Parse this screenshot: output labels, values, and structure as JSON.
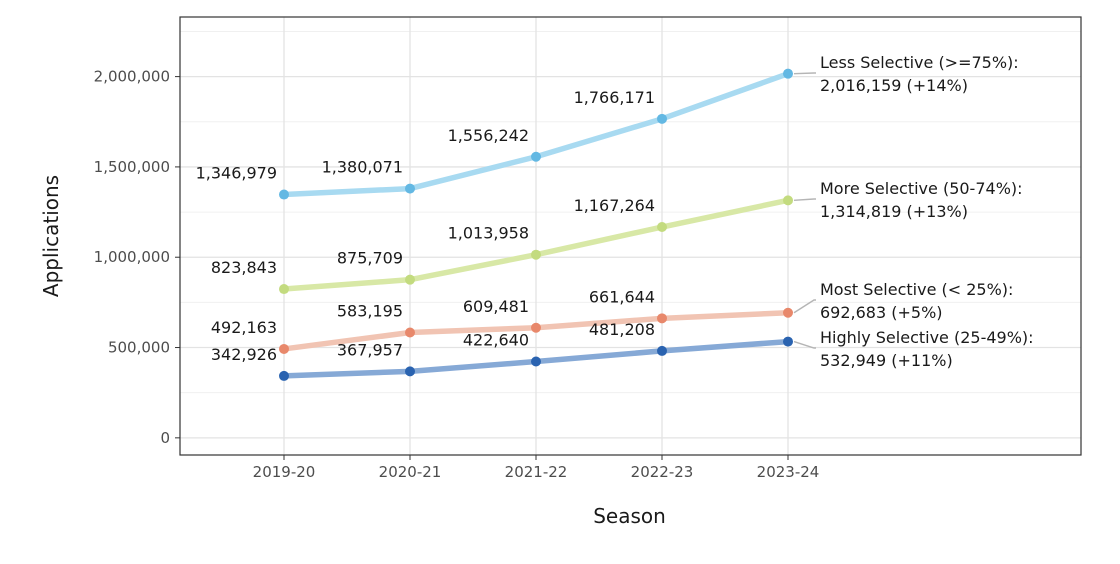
{
  "chart_data": {
    "type": "line",
    "title": "",
    "xlabel": "Season",
    "ylabel": "Applications",
    "categories": [
      "2019-20",
      "2020-21",
      "2021-22",
      "2022-23",
      "2023-24"
    ],
    "ylim": [
      -95000,
      2330000
    ],
    "yticks": [
      0,
      500000,
      1000000,
      1500000,
      2000000
    ],
    "ytick_labels": [
      "0",
      "500,000",
      "1,000,000",
      "1,500,000",
      "2,000,000"
    ],
    "grid": true,
    "legend": "none",
    "series": [
      {
        "name": "Less Selective (>=75%):",
        "end_label": "2,016,159 (+14%)",
        "color": "#63b8e3",
        "line_color": "#a8daf1",
        "values": [
          1346979,
          1380071,
          1556242,
          1766171,
          2016159
        ],
        "value_labels": [
          "1,346,979",
          "1,380,071",
          "1,556,242",
          "1,766,171"
        ]
      },
      {
        "name": "More Selective (50-74%):",
        "end_label": "1,314,819 (+13%)",
        "color": "#c3db7f",
        "line_color": "#d8e8a6",
        "values": [
          823843,
          875709,
          1013958,
          1167264,
          1314819
        ],
        "value_labels": [
          "823,843",
          "875,709",
          "1,013,958",
          "1,167,264"
        ]
      },
      {
        "name": "Most Selective (< 25%):",
        "end_label": "692,683 (+5%)",
        "color": "#e8886b",
        "line_color": "#f1c4b3",
        "values": [
          492163,
          583195,
          609481,
          661644,
          692683
        ],
        "value_labels": [
          "492,163",
          "583,195",
          "609,481",
          "661,644"
        ]
      },
      {
        "name": "Highly Selective (25-49%):",
        "end_label": "532,949 (+11%)",
        "color": "#2a63b0",
        "line_color": "#86a9d6",
        "values": [
          342926,
          367957,
          422640,
          481208,
          532949
        ],
        "value_labels": [
          "342,926",
          "367,957",
          "422,640",
          "481,208"
        ]
      }
    ]
  }
}
